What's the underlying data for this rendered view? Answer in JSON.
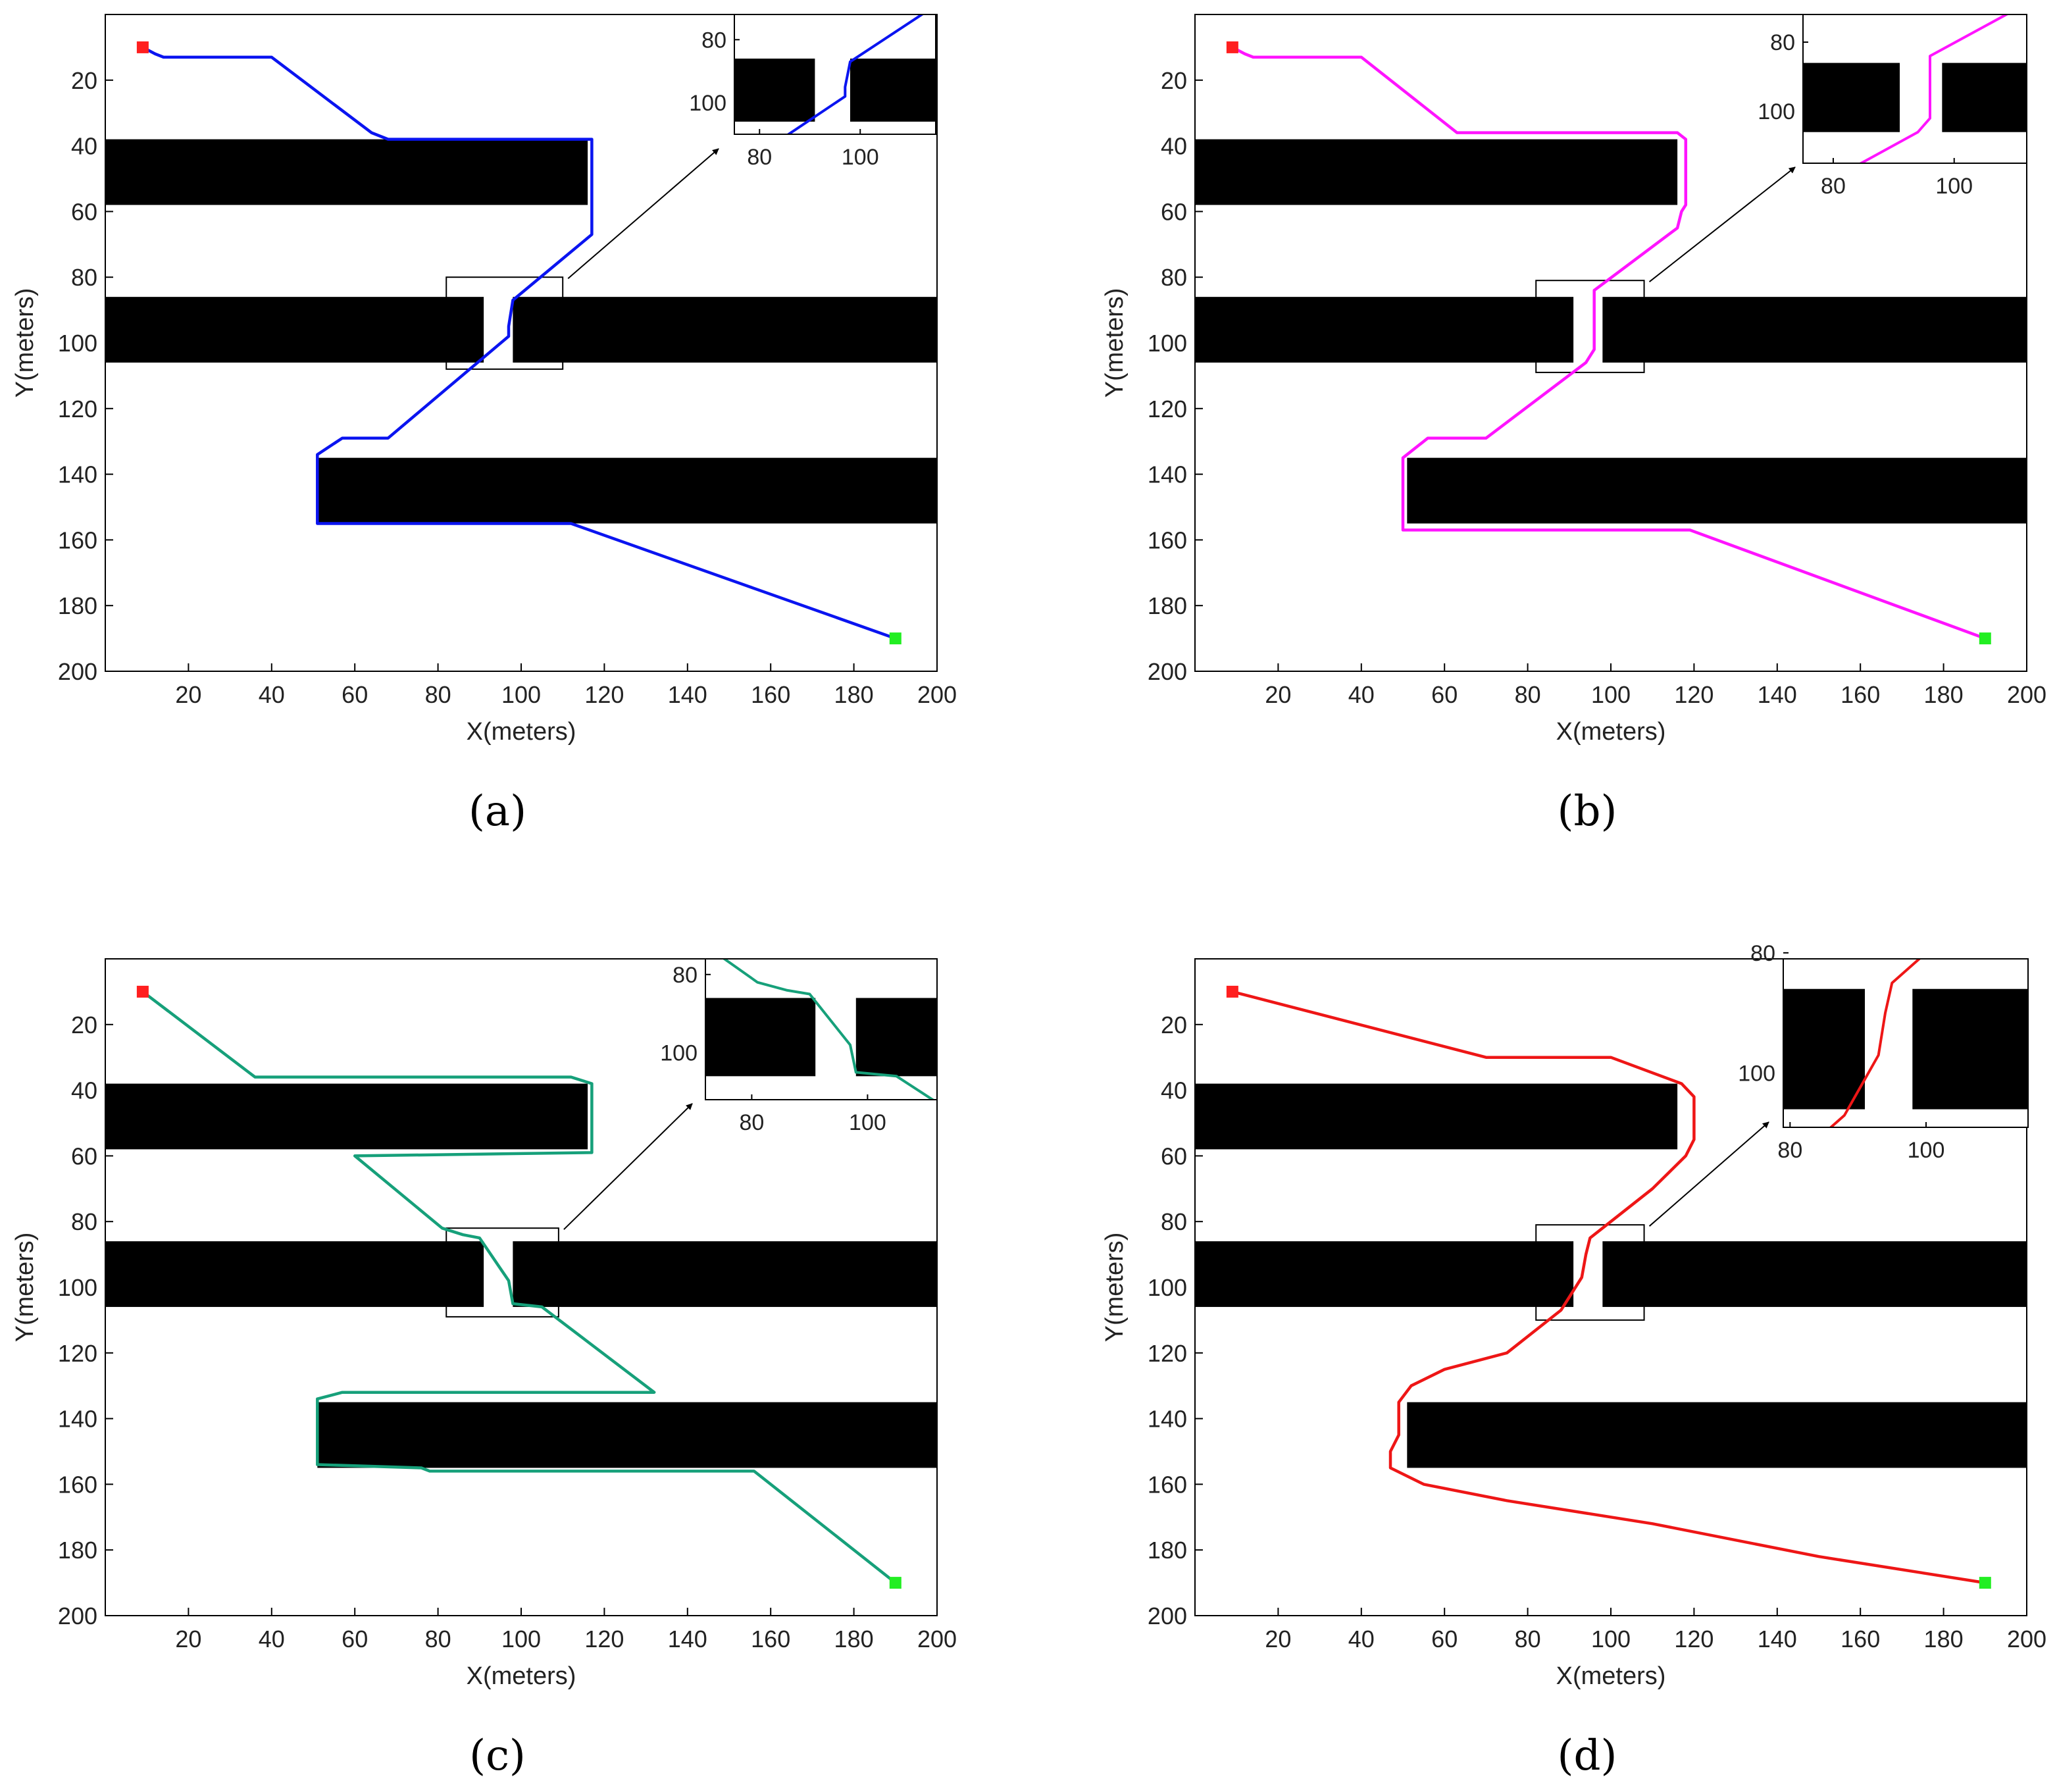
{
  "chart_data": [
    {
      "id": "a",
      "type": "line",
      "caption": "(a)",
      "xlabel": "X(meters)",
      "ylabel": "Y(meters)",
      "xlim": [
        0,
        200
      ],
      "ylim": [
        200,
        0
      ],
      "y_reversed": true,
      "xticks": [
        20,
        40,
        60,
        80,
        100,
        120,
        140,
        160,
        180,
        200
      ],
      "yticks": [
        20,
        40,
        60,
        80,
        100,
        120,
        140,
        160,
        180,
        200
      ],
      "obstacles": [
        {
          "x0": 0,
          "x1": 116,
          "y0": 38,
          "y1": 58
        },
        {
          "x0": 0,
          "x1": 91,
          "y0": 86,
          "y1": 106
        },
        {
          "x0": 98,
          "x1": 200,
          "y0": 86,
          "y1": 106
        },
        {
          "x0": 51,
          "x1": 200,
          "y0": 135,
          "y1": 155
        }
      ],
      "start": {
        "x": 9,
        "y": 10
      },
      "goal": {
        "x": 190,
        "y": 190
      },
      "series": [
        {
          "name": "path",
          "color": "#0a14f0",
          "x": [
            9,
            12,
            14,
            40,
            64,
            66,
            68,
            117,
            117,
            98,
            97,
            97,
            68,
            57,
            51,
            51,
            112,
            190
          ],
          "y": [
            10,
            12,
            13,
            13,
            36,
            37,
            38,
            38,
            67,
            87,
            95,
            98,
            129,
            129,
            134,
            155,
            155,
            190
          ]
        }
      ],
      "zoom_box": {
        "x0": 82,
        "x1": 110,
        "y0": 80,
        "y1": 108
      },
      "inset": {
        "xlim": [
          75,
          115
        ],
        "ylim": [
          110,
          72
        ],
        "xticks": [
          80,
          100
        ],
        "yticks": [
          80,
          100
        ]
      }
    },
    {
      "id": "b",
      "type": "line",
      "caption": "(b)",
      "xlabel": "X(meters)",
      "ylabel": "Y(meters)",
      "xlim": [
        0,
        200
      ],
      "ylim": [
        200,
        0
      ],
      "y_reversed": true,
      "xticks": [
        20,
        40,
        60,
        80,
        100,
        120,
        140,
        160,
        180,
        200
      ],
      "yticks": [
        20,
        40,
        60,
        80,
        100,
        120,
        140,
        160,
        180,
        200
      ],
      "obstacles": [
        {
          "x0": 0,
          "x1": 116,
          "y0": 38,
          "y1": 58
        },
        {
          "x0": 0,
          "x1": 91,
          "y0": 86,
          "y1": 106
        },
        {
          "x0": 98,
          "x1": 200,
          "y0": 86,
          "y1": 106
        },
        {
          "x0": 51,
          "x1": 200,
          "y0": 135,
          "y1": 155
        }
      ],
      "start": {
        "x": 9,
        "y": 10
      },
      "goal": {
        "x": 190,
        "y": 190
      },
      "series": [
        {
          "name": "path",
          "color": "#ff14ff",
          "x": [
            9,
            12,
            14,
            40,
            63,
            116,
            118,
            118,
            117,
            116,
            96,
            96,
            94,
            70,
            56,
            50,
            50,
            119,
            190
          ],
          "y": [
            10,
            12,
            13,
            13,
            36,
            36,
            38,
            58,
            60,
            65,
            84,
            102,
            106,
            129,
            129,
            135,
            157,
            157,
            190
          ]
        }
      ],
      "zoom_box": {
        "x0": 82,
        "x1": 108,
        "y0": 81,
        "y1": 109
      },
      "inset": {
        "xlim": [
          75,
          112
        ],
        "ylim": [
          115,
          72
        ],
        "xticks": [
          80,
          100
        ],
        "yticks": [
          80,
          100
        ]
      }
    },
    {
      "id": "c",
      "type": "line",
      "caption": "(c)",
      "xlabel": "X(meters)",
      "ylabel": "Y(meters)",
      "xlim": [
        0,
        200
      ],
      "ylim": [
        200,
        0
      ],
      "y_reversed": true,
      "xticks": [
        20,
        40,
        60,
        80,
        100,
        120,
        140,
        160,
        180,
        200
      ],
      "yticks": [
        20,
        40,
        60,
        80,
        100,
        120,
        140,
        160,
        180,
        200
      ],
      "obstacles": [
        {
          "x0": 0,
          "x1": 116,
          "y0": 38,
          "y1": 58
        },
        {
          "x0": 0,
          "x1": 91,
          "y0": 86,
          "y1": 106
        },
        {
          "x0": 98,
          "x1": 200,
          "y0": 86,
          "y1": 106
        },
        {
          "x0": 51,
          "x1": 200,
          "y0": 135,
          "y1": 155
        }
      ],
      "start": {
        "x": 9,
        "y": 10
      },
      "goal": {
        "x": 190,
        "y": 190
      },
      "series": [
        {
          "name": "path",
          "color": "#16a07a",
          "x": [
            9,
            36,
            112,
            117,
            117,
            60,
            81,
            86,
            90,
            97,
            98,
            105,
            132,
            57,
            51,
            51,
            76,
            78,
            156,
            190
          ],
          "y": [
            10,
            36,
            36,
            38,
            59,
            60,
            82,
            84,
            85,
            98,
            105,
            106,
            132,
            132,
            134,
            154,
            155,
            156,
            156,
            190
          ]
        }
      ],
      "zoom_box": {
        "x0": 82,
        "x1": 109,
        "y0": 82,
        "y1": 109
      },
      "inset": {
        "xlim": [
          72,
          112
        ],
        "ylim": [
          112,
          76
        ],
        "xticks": [
          80,
          100
        ],
        "yticks": [
          80,
          100
        ]
      }
    },
    {
      "id": "d",
      "type": "line",
      "caption": "(d)",
      "xlabel": "X(meters)",
      "ylabel": "Y(meters)",
      "xlim": [
        0,
        200
      ],
      "ylim": [
        200,
        0
      ],
      "y_reversed": true,
      "xticks": [
        20,
        40,
        60,
        80,
        100,
        120,
        140,
        160,
        180,
        200
      ],
      "yticks": [
        20,
        40,
        60,
        80,
        100,
        120,
        140,
        160,
        180,
        200
      ],
      "obstacles": [
        {
          "x0": 0,
          "x1": 116,
          "y0": 38,
          "y1": 58
        },
        {
          "x0": 0,
          "x1": 91,
          "y0": 86,
          "y1": 106
        },
        {
          "x0": 98,
          "x1": 200,
          "y0": 86,
          "y1": 106
        },
        {
          "x0": 51,
          "x1": 200,
          "y0": 135,
          "y1": 155
        }
      ],
      "start": {
        "x": 9,
        "y": 10
      },
      "goal": {
        "x": 190,
        "y": 190
      },
      "series": [
        {
          "name": "path",
          "color": "#ee1616",
          "x": [
            9,
            70,
            100,
            117,
            120,
            120,
            118,
            110,
            100,
            95,
            94,
            93,
            88,
            75,
            60,
            52,
            49,
            49,
            47,
            47,
            55,
            75,
            110,
            150,
            190
          ],
          "y": [
            10,
            30,
            30,
            38,
            42,
            55,
            60,
            70,
            80,
            85,
            90,
            97,
            107,
            120,
            125,
            130,
            135,
            145,
            150,
            155,
            160,
            165,
            172,
            182,
            190
          ]
        }
      ],
      "zoom_box": {
        "x0": 82,
        "x1": 108,
        "y0": 81,
        "y1": 110
      },
      "inset": {
        "xlim": [
          79,
          115
        ],
        "ylim": [
          109,
          81
        ],
        "xticks": [
          80,
          100
        ],
        "yticks": [
          80,
          100
        ]
      }
    }
  ]
}
